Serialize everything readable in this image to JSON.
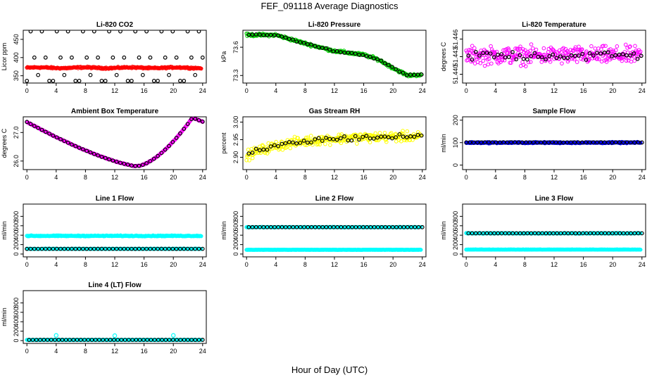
{
  "page": {
    "title": "FEF_091118  Average Diagnostics",
    "xlabel": "Hour of Day (UTC)"
  },
  "x_axis": {
    "range": [
      -0.5,
      24.5
    ],
    "ticks": [
      0,
      4,
      8,
      12,
      16,
      20,
      24
    ]
  },
  "chart_data": [
    {
      "type": "scatter",
      "title": "Li-820 CO2",
      "ylabel": "Licor ppm",
      "ylim": [
        330,
        475
      ],
      "yticks": [
        "350",
        "400",
        "450"
      ],
      "ytick_values": [
        350,
        400,
        450
      ],
      "series": [
        {
          "color": "#ff0000",
          "kind": "band",
          "fn": "flat",
          "x_range": [
            0,
            23.8
          ],
          "base": 372,
          "amp": 1,
          "spread": 3
        },
        {
          "color": "#000000",
          "kind": "hourly_outliers",
          "x_range": [
            0,
            24
          ],
          "base": 372,
          "amp": 0,
          "offsets": [
            -36,
            100,
            28,
            -20,
            100,
            28,
            -36
          ]
        }
      ]
    },
    {
      "type": "scatter",
      "title": "Li-820 Pressure",
      "ylabel": "kPa",
      "ylim": [
        73.22,
        73.78
      ],
      "yticks": [
        "73.3",
        "73.6"
      ],
      "ytick_values": [
        73.3,
        73.6
      ],
      "series": [
        {
          "color": "#00cc00",
          "kind": "band",
          "fn": "pressure",
          "x_range": [
            0,
            23.8
          ],
          "spread": 0.02
        },
        {
          "color": "#000000",
          "kind": "hourly",
          "fn": "pressure",
          "x_range": [
            0.3,
            23.9
          ],
          "spread": 0.01
        }
      ]
    },
    {
      "type": "scatter",
      "title": "Li-820 Temperature",
      "ylabel": "degrees C",
      "ylim": [
        51.4385,
        51.4475
      ],
      "yticks": [
        "51.440",
        "51.443",
        "51.446"
      ],
      "ytick_values": [
        51.44,
        51.443,
        51.446
      ],
      "series": [
        {
          "color": "#ff00ff",
          "kind": "noise",
          "fn": "flat",
          "x_range": [
            0,
            23.8
          ],
          "base": 51.4432,
          "amp": 0,
          "spread": 0.0022
        },
        {
          "color": "#000000",
          "kind": "hourly",
          "fn": "flat",
          "x_range": [
            0.3,
            23.9
          ],
          "base": 51.4432,
          "amp": 0,
          "spread": 0.0013
        }
      ]
    },
    {
      "type": "scatter",
      "title": "Ambient Box Temperature",
      "ylabel": "degrees C",
      "ylim": [
        25.7,
        27.55
      ],
      "yticks": [
        "26.0",
        "27.0"
      ],
      "ytick_values": [
        26.0,
        27.0
      ],
      "series": [
        {
          "color": "#ff00ff",
          "kind": "band",
          "fn": "ambient",
          "x_range": [
            0,
            24
          ],
          "spread": 0.02
        },
        {
          "color": "#000000",
          "kind": "hourly",
          "fn": "ambient",
          "x_range": [
            0,
            24
          ],
          "spread": 0.005
        }
      ]
    },
    {
      "type": "scatter",
      "title": "Gas Stream RH",
      "ylabel": "percent",
      "ylim": [
        2.865,
        3.015
      ],
      "yticks": [
        "2.90",
        "2.95",
        "3.00"
      ],
      "ytick_values": [
        2.9,
        2.95,
        3.0
      ],
      "series": [
        {
          "color": "#ffff00",
          "kind": "noise",
          "fn": "rh",
          "x_range": [
            0,
            23.8
          ],
          "spread": 0.02
        },
        {
          "color": "#000000",
          "kind": "hourly",
          "fn": "rh",
          "x_range": [
            0.3,
            23.9
          ],
          "spread": 0.012
        }
      ]
    },
    {
      "type": "scatter",
      "title": "Sample Flow",
      "ylabel": "ml/min",
      "ylim": [
        -20,
        215
      ],
      "yticks": [
        "0",
        "100",
        "200"
      ],
      "ytick_values": [
        0,
        100,
        200
      ],
      "series": [
        {
          "color": "#0000ff",
          "kind": "band",
          "fn": "flat",
          "x_range": [
            0,
            23.8
          ],
          "base": 100,
          "amp": 0,
          "spread": 4
        },
        {
          "color": "#000000",
          "kind": "hourly",
          "fn": "flat",
          "x_range": [
            0,
            24
          ],
          "base": 101,
          "amp": 0,
          "spread": 1
        }
      ]
    },
    {
      "type": "scatter",
      "title": "Line 1 Flow",
      "ylabel": "ml/min",
      "ylim": [
        -60,
        1060
      ],
      "yticks": [
        "0",
        "200",
        "400",
        "600",
        "800"
      ],
      "ytick_values": [
        0,
        200,
        400,
        600,
        800
      ],
      "series": [
        {
          "color": "#00ffff",
          "kind": "band",
          "fn": "flat",
          "x_range": [
            0,
            23.8
          ],
          "base": 385,
          "amp": 0,
          "spread": 14
        },
        {
          "color": "#00ffff",
          "kind": "band",
          "fn": "flat",
          "x_range": [
            0,
            23.8
          ],
          "base": 110,
          "amp": 0,
          "spread": 5
        },
        {
          "color": "#000000",
          "kind": "hourly",
          "fn": "flat",
          "x_range": [
            0,
            24
          ],
          "base": 110,
          "amp": 0,
          "spread": 1
        }
      ]
    },
    {
      "type": "scatter",
      "title": "Line 2 Flow",
      "ylabel": "ml/min",
      "ylim": [
        -60,
        1060
      ],
      "yticks": [
        "0",
        "200",
        "400",
        "600",
        "800"
      ],
      "ytick_values": [
        0,
        200,
        400,
        600,
        800
      ],
      "series": [
        {
          "color": "#00ffff",
          "kind": "band",
          "fn": "flat",
          "x_range": [
            0,
            23.8
          ],
          "base": 570,
          "amp": 0,
          "spread": 8
        },
        {
          "color": "#00ffff",
          "kind": "band",
          "fn": "flat",
          "x_range": [
            0,
            23.8
          ],
          "base": 90,
          "amp": 0,
          "spread": 4
        },
        {
          "color": "#000000",
          "kind": "hourly",
          "fn": "flat",
          "x_range": [
            0.3,
            24
          ],
          "base": 570,
          "amp": 0,
          "spread": 1
        }
      ]
    },
    {
      "type": "scatter",
      "title": "Line 3 Flow",
      "ylabel": "ml/min",
      "ylim": [
        -60,
        1060
      ],
      "yticks": [
        "0",
        "200",
        "400",
        "600",
        "800"
      ],
      "ytick_values": [
        0,
        200,
        400,
        600,
        800
      ],
      "series": [
        {
          "color": "#00ffff",
          "kind": "band",
          "fn": "flat",
          "x_range": [
            0,
            23.8
          ],
          "base": 440,
          "amp": 0,
          "spread": 10
        },
        {
          "color": "#00ffff",
          "kind": "band",
          "fn": "flat",
          "x_range": [
            0,
            23.8
          ],
          "base": 95,
          "amp": 0,
          "spread": 4
        },
        {
          "color": "#000000",
          "kind": "hourly",
          "fn": "flat",
          "x_range": [
            0.3,
            24
          ],
          "base": 440,
          "amp": 0,
          "spread": 2
        }
      ]
    },
    {
      "type": "scatter",
      "title": "Line 4 (LT) Flow",
      "ylabel": "ml/min",
      "ylim": [
        -60,
        1060
      ],
      "yticks": [
        "0",
        "200",
        "400",
        "600",
        "800"
      ],
      "ytick_values": [
        0,
        200,
        400,
        600,
        800
      ],
      "series": [
        {
          "color": "#00ffff",
          "kind": "band",
          "fn": "flat",
          "x_range": [
            0,
            23.8
          ],
          "base": 15,
          "amp": 0,
          "spread": 5
        },
        {
          "color": "#00ffff",
          "kind": "spikes",
          "x_values": [
            4,
            12,
            20
          ],
          "y_values": [
            110,
            105,
            110
          ]
        },
        {
          "color": "#000000",
          "kind": "hourly",
          "fn": "flat",
          "x_range": [
            0.3,
            24
          ],
          "base": 15,
          "amp": 0,
          "spread": 1
        }
      ]
    }
  ]
}
